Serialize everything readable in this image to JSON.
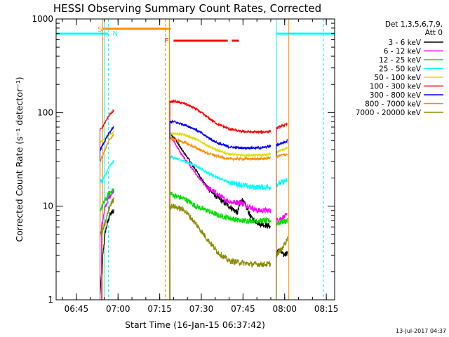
{
  "chart_data": {
    "type": "line",
    "title": "HESSI Observing Summary Count Rates, Corrected",
    "xlabel": "Start Time (16-Jan-15 06:37:42)",
    "ylabel": "Corrected Count Rate (s⁻¹ detector⁻¹)",
    "yscale": "log",
    "ylim": [
      1,
      1000
    ],
    "xlim": [
      "06:37:42",
      "08:18:00"
    ],
    "x_ticks": [
      "06:45",
      "07:00",
      "07:15",
      "07:30",
      "07:45",
      "08:00",
      "08:15"
    ],
    "y_ticks": [
      "1",
      "10",
      "100",
      "1000"
    ],
    "grid": false,
    "legend_position": "right",
    "legend_header": [
      "Det 1,3,5,6,7,9,",
      "Att 0"
    ],
    "footer": "13-Jul-2017 04:37",
    "flags": {
      "saa_label": "S",
      "night_label": "N",
      "flare_label": "F"
    },
    "series": [
      {
        "name": "3 - 6 keV",
        "color": "#000000",
        "segments": [
          {
            "t": [
              "06:53:30",
              "06:54:30",
              "06:55:30",
              "06:57:00",
              "06:58:30"
            ],
            "v": [
              1.1,
              3.0,
              5.5,
              8.0,
              9.0
            ]
          },
          {
            "t": [
              "07:18:40",
              "07:20:00",
              "07:23:00",
              "07:26:00",
              "07:29:00",
              "07:32:00",
              "07:35:00",
              "07:38:00",
              "07:41:00",
              "07:43:00",
              "07:44:30",
              "07:46:00",
              "07:48:00",
              "07:51:00",
              "07:54:00",
              "07:55:00"
            ],
            "v": [
              60,
              55,
              40,
              30,
              22,
              16,
              13,
              11,
              9.5,
              8.5,
              12,
              10,
              7.5,
              6.5,
              6.2,
              6.0
            ]
          },
          {
            "t": [
              "07:57:00",
              "07:58:00",
              "07:59:30",
              "08:01:00"
            ],
            "v": [
              3.0,
              3.5,
              3.0,
              3.2
            ]
          }
        ]
      },
      {
        "name": "6 - 12 keV",
        "color": "#ff00ff",
        "segments": [
          {
            "t": [
              "06:54:00",
              "06:55:30",
              "06:57:00",
              "06:58:30"
            ],
            "v": [
              6,
              10,
              13,
              15
            ]
          },
          {
            "t": [
              "07:18:40",
              "07:20:00",
              "07:23:00",
              "07:26:00",
              "07:29:00",
              "07:32:00",
              "07:35:00",
              "07:38:00",
              "07:41:00",
              "07:44:00",
              "07:47:00",
              "07:50:00",
              "07:53:00",
              "07:55:00"
            ],
            "v": [
              55,
              50,
              35,
              27,
              20,
              16,
              14,
              12,
              11,
              11,
              10,
              9,
              9,
              9
            ]
          },
          {
            "t": [
              "07:57:00",
              "07:59:00",
              "08:01:00"
            ],
            "v": [
              7,
              7.5,
              8
            ]
          }
        ]
      },
      {
        "name": "12 - 25 keV",
        "color": "#00dd00",
        "segments": [
          {
            "t": [
              "06:53:30",
              "06:55:00",
              "06:57:00",
              "06:58:30"
            ],
            "v": [
              9,
              11,
              14,
              15
            ]
          },
          {
            "t": [
              "07:18:40",
              "07:20:00",
              "07:24:00",
              "07:28:00",
              "07:32:00",
              "07:36:00",
              "07:40:00",
              "07:44:00",
              "07:48:00",
              "07:52:00",
              "07:55:00"
            ],
            "v": [
              14,
              13,
              12,
              10,
              9,
              8,
              7.5,
              7,
              7,
              7,
              7
            ]
          },
          {
            "t": [
              "07:57:00",
              "07:59:00",
              "08:01:00"
            ],
            "v": [
              6.5,
              6.8,
              7
            ]
          }
        ]
      },
      {
        "name": "25 - 50 keV",
        "color": "#00ffff",
        "segments": [
          {
            "t": [
              "06:53:30",
              "06:55:00",
              "06:57:00",
              "06:58:30"
            ],
            "v": [
              18,
              20,
              27,
              30
            ]
          },
          {
            "t": [
              "07:18:40",
              "07:20:00",
              "07:24:00",
              "07:28:00",
              "07:32:00",
              "07:36:00",
              "07:40:00",
              "07:44:00",
              "07:48:00",
              "07:52:00",
              "07:55:00"
            ],
            "v": [
              34,
              33,
              30,
              27,
              23,
              20,
              18,
              17,
              16,
              16,
              16
            ]
          },
          {
            "t": [
              "07:57:00",
              "07:59:00",
              "08:01:00"
            ],
            "v": [
              17,
              18,
              19
            ]
          }
        ]
      },
      {
        "name": "50 - 100 keV",
        "color": "#dddd00",
        "segments": [
          {
            "t": [
              "06:53:30",
              "06:55:00",
              "06:57:00",
              "06:58:30"
            ],
            "v": [
              48,
              52,
              58,
              62
            ]
          },
          {
            "t": [
              "07:18:40",
              "07:20:00",
              "07:24:00",
              "07:28:00",
              "07:32:00",
              "07:36:00",
              "07:40:00",
              "07:44:00",
              "07:48:00",
              "07:52:00",
              "07:55:00"
            ],
            "v": [
              60,
              60,
              58,
              52,
              45,
              39,
              36,
              35,
              35,
              35,
              36
            ]
          },
          {
            "t": [
              "07:57:00",
              "07:59:00",
              "08:01:00"
            ],
            "v": [
              38,
              40,
              42
            ]
          }
        ]
      },
      {
        "name": "100 - 300 keV",
        "color": "#ff0000",
        "segments": [
          {
            "t": [
              "06:53:30",
              "06:55:00",
              "06:57:00",
              "06:58:30"
            ],
            "v": [
              65,
              75,
              95,
              105
            ]
          },
          {
            "t": [
              "07:18:40",
              "07:20:00",
              "07:24:00",
              "07:28:00",
              "07:32:00",
              "07:36:00",
              "07:40:00",
              "07:44:00",
              "07:48:00",
              "07:52:00",
              "07:55:00"
            ],
            "v": [
              130,
              132,
              125,
              110,
              90,
              75,
              67,
              63,
              62,
              62,
              63
            ]
          },
          {
            "t": [
              "07:57:00",
              "07:59:00",
              "08:01:00"
            ],
            "v": [
              68,
              72,
              75
            ]
          }
        ]
      },
      {
        "name": "300 - 800 keV",
        "color": "#0000ff",
        "segments": [
          {
            "t": [
              "06:53:30",
              "06:55:00",
              "06:57:00",
              "06:58:30"
            ],
            "v": [
              40,
              48,
              62,
              70
            ]
          },
          {
            "t": [
              "07:18:40",
              "07:20:00",
              "07:24:00",
              "07:28:00",
              "07:32:00",
              "07:36:00",
              "07:40:00",
              "07:44:00",
              "07:48:00",
              "07:52:00",
              "07:55:00"
            ],
            "v": [
              80,
              80,
              74,
              66,
              55,
              47,
              43,
              42,
              42,
              42,
              44
            ]
          },
          {
            "t": [
              "07:57:00",
              "07:59:00",
              "08:01:00"
            ],
            "v": [
              45,
              47,
              50
            ]
          }
        ]
      },
      {
        "name": "800 - 7000 keV",
        "color": "#ff8c00",
        "segments": [
          {
            "t": [
              "06:53:30",
              "06:55:00",
              "06:57:00",
              "06:58:30"
            ],
            "v": [
              30,
              38,
              52,
              58
            ]
          },
          {
            "t": [
              "07:18:40",
              "07:20:00",
              "07:24:00",
              "07:28:00",
              "07:32:00",
              "07:36:00",
              "07:40:00",
              "07:44:00",
              "07:48:00",
              "07:52:00",
              "07:55:00"
            ],
            "v": [
              52,
              52,
              48,
              42,
              37,
              34,
              32,
              32,
              32,
              32,
              33
            ]
          },
          {
            "t": [
              "07:57:00",
              "07:59:00",
              "08:01:00"
            ],
            "v": [
              34,
              35,
              36
            ]
          }
        ]
      },
      {
        "name": "7000 - 20000 keV",
        "color": "#8b8b00",
        "segments": [
          {
            "t": [
              "06:53:30",
              "06:55:00",
              "06:57:00",
              "06:58:30"
            ],
            "v": [
              5,
              6,
              10,
              12
            ]
          },
          {
            "t": [
              "07:18:40",
              "07:20:00",
              "07:24:00",
              "07:28:00",
              "07:32:00",
              "07:36:00",
              "07:40:00",
              "07:44:00",
              "07:48:00",
              "07:52:00",
              "07:55:00"
            ],
            "v": [
              10,
              10,
              9,
              6.5,
              4.5,
              3.2,
              2.6,
              2.5,
              2.4,
              2.4,
              2.4
            ]
          },
          {
            "t": [
              "07:57:00",
              "07:59:00",
              "08:01:00"
            ],
            "v": [
              3,
              3.5,
              4.5
            ]
          }
        ]
      }
    ]
  }
}
